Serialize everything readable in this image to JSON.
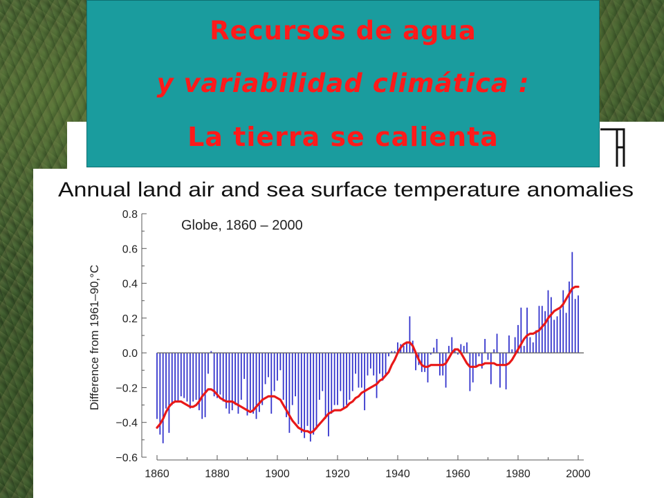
{
  "slide": {
    "title_lines": [
      "Recursos de agua",
      "y variabilidad climática :",
      "La tierra se calienta"
    ],
    "colors": {
      "title_box": "#1a9c9e",
      "title_text": "#ff1a1a"
    }
  },
  "chart_data": {
    "type": "bar",
    "title": "Annual land air and sea surface temperature anomalies",
    "subtitle": "Globe, 1860 – 2000",
    "ylabel": "Difference from 1961–90,°C",
    "xlabel": "",
    "xlim": [
      1860,
      2000
    ],
    "ylim": [
      -0.6,
      0.8
    ],
    "x_ticks": [
      "1860",
      "1880",
      "1900",
      "1920",
      "1940",
      "1960",
      "1980",
      "2000"
    ],
    "y_ticks": [
      "0.8",
      "0.6",
      "0.4",
      "0.2",
      "0.0",
      "−0.2",
      "−0.4",
      "−0.6"
    ],
    "grid": false,
    "colors": {
      "bars": "#3333cc",
      "smooth": "#e81818"
    },
    "years": [
      1860,
      1861,
      1862,
      1863,
      1864,
      1865,
      1866,
      1867,
      1868,
      1869,
      1870,
      1871,
      1872,
      1873,
      1874,
      1875,
      1876,
      1877,
      1878,
      1879,
      1880,
      1881,
      1882,
      1883,
      1884,
      1885,
      1886,
      1887,
      1888,
      1889,
      1890,
      1891,
      1892,
      1893,
      1894,
      1895,
      1896,
      1897,
      1898,
      1899,
      1900,
      1901,
      1902,
      1903,
      1904,
      1905,
      1906,
      1907,
      1908,
      1909,
      1910,
      1911,
      1912,
      1913,
      1914,
      1915,
      1916,
      1917,
      1918,
      1919,
      1920,
      1921,
      1922,
      1923,
      1924,
      1925,
      1926,
      1927,
      1928,
      1929,
      1930,
      1931,
      1932,
      1933,
      1934,
      1935,
      1936,
      1937,
      1938,
      1939,
      1940,
      1941,
      1942,
      1943,
      1944,
      1945,
      1946,
      1947,
      1948,
      1949,
      1950,
      1951,
      1952,
      1953,
      1954,
      1955,
      1956,
      1957,
      1958,
      1959,
      1960,
      1961,
      1962,
      1963,
      1964,
      1965,
      1966,
      1967,
      1968,
      1969,
      1970,
      1971,
      1972,
      1973,
      1974,
      1975,
      1976,
      1977,
      1978,
      1979,
      1980,
      1981,
      1982,
      1983,
      1984,
      1985,
      1986,
      1987,
      1988,
      1989,
      1990,
      1991,
      1992,
      1993,
      1994,
      1995,
      1996,
      1997,
      1998,
      1999,
      2000
    ],
    "values": [
      -0.38,
      -0.47,
      -0.52,
      -0.32,
      -0.46,
      -0.3,
      -0.28,
      -0.28,
      -0.25,
      -0.26,
      -0.28,
      -0.32,
      -0.28,
      -0.27,
      -0.33,
      -0.38,
      -0.37,
      -0.12,
      0.01,
      -0.25,
      -0.26,
      -0.24,
      -0.28,
      -0.32,
      -0.35,
      -0.33,
      -0.3,
      -0.35,
      -0.27,
      -0.15,
      -0.36,
      -0.33,
      -0.35,
      -0.38,
      -0.34,
      -0.3,
      -0.18,
      -0.14,
      -0.35,
      -0.22,
      -0.16,
      -0.1,
      -0.27,
      -0.37,
      -0.46,
      -0.3,
      -0.25,
      -0.41,
      -0.46,
      -0.49,
      -0.42,
      -0.51,
      -0.47,
      -0.44,
      -0.27,
      -0.22,
      -0.38,
      -0.48,
      -0.35,
      -0.3,
      -0.3,
      -0.22,
      -0.32,
      -0.3,
      -0.27,
      -0.22,
      -0.12,
      -0.2,
      -0.2,
      -0.33,
      -0.13,
      -0.09,
      -0.13,
      -0.26,
      -0.12,
      -0.16,
      -0.13,
      -0.02,
      0.01,
      0.01,
      0.06,
      0.05,
      0.04,
      0.06,
      0.21,
      0.07,
      -0.1,
      -0.07,
      -0.11,
      -0.11,
      -0.17,
      -0.01,
      0.03,
      0.08,
      -0.13,
      -0.13,
      -0.2,
      0.04,
      0.09,
      0.02,
      -0.01,
      0.05,
      0.04,
      0.06,
      -0.22,
      -0.17,
      -0.08,
      -0.02,
      -0.09,
      0.08,
      -0.04,
      -0.18,
      0.02,
      0.11,
      -0.2,
      -0.07,
      -0.21,
      0.1,
      0.02,
      0.09,
      0.16,
      0.26,
      0.04,
      0.26,
      0.09,
      0.06,
      0.13,
      0.27,
      0.27,
      0.24,
      0.36,
      0.32,
      0.19,
      0.21,
      0.25,
      0.36,
      0.23,
      0.41,
      0.58,
      0.31,
      0.33
    ],
    "smoothed": [
      -0.43,
      -0.41,
      -0.38,
      -0.34,
      -0.31,
      -0.29,
      -0.28,
      -0.28,
      -0.28,
      -0.29,
      -0.3,
      -0.31,
      -0.31,
      -0.3,
      -0.28,
      -0.25,
      -0.23,
      -0.21,
      -0.21,
      -0.22,
      -0.24,
      -0.26,
      -0.27,
      -0.28,
      -0.28,
      -0.28,
      -0.29,
      -0.3,
      -0.31,
      -0.32,
      -0.33,
      -0.34,
      -0.33,
      -0.31,
      -0.29,
      -0.27,
      -0.26,
      -0.25,
      -0.25,
      -0.25,
      -0.26,
      -0.27,
      -0.3,
      -0.33,
      -0.36,
      -0.39,
      -0.41,
      -0.43,
      -0.44,
      -0.45,
      -0.45,
      -0.46,
      -0.45,
      -0.43,
      -0.41,
      -0.39,
      -0.37,
      -0.35,
      -0.34,
      -0.33,
      -0.33,
      -0.33,
      -0.32,
      -0.31,
      -0.29,
      -0.28,
      -0.26,
      -0.25,
      -0.23,
      -0.22,
      -0.21,
      -0.2,
      -0.19,
      -0.18,
      -0.16,
      -0.15,
      -0.13,
      -0.11,
      -0.07,
      -0.04,
      0.0,
      0.03,
      0.05,
      0.06,
      0.06,
      0.04,
      0.0,
      -0.04,
      -0.07,
      -0.08,
      -0.08,
      -0.07,
      -0.07,
      -0.07,
      -0.07,
      -0.07,
      -0.06,
      -0.03,
      0.0,
      0.02,
      0.02,
      0.0,
      -0.03,
      -0.06,
      -0.08,
      -0.08,
      -0.08,
      -0.07,
      -0.07,
      -0.06,
      -0.06,
      -0.06,
      -0.06,
      -0.07,
      -0.07,
      -0.07,
      -0.07,
      -0.06,
      -0.04,
      -0.01,
      0.02,
      0.05,
      0.08,
      0.1,
      0.11,
      0.11,
      0.12,
      0.13,
      0.15,
      0.17,
      0.2,
      0.22,
      0.24,
      0.25,
      0.26,
      0.28,
      0.31,
      0.34,
      0.37,
      0.38,
      0.38
    ]
  }
}
